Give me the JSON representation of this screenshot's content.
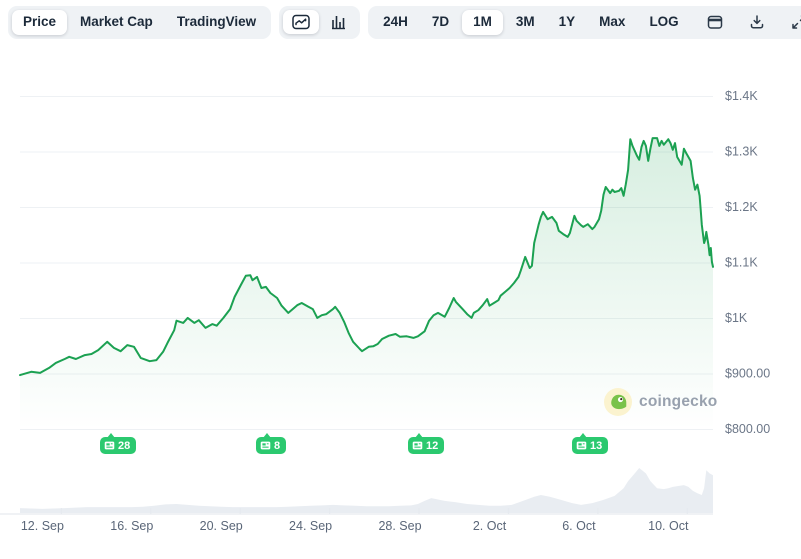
{
  "toolbar": {
    "view_tabs": [
      {
        "label": "Price",
        "active": true
      },
      {
        "label": "Market Cap",
        "active": false
      },
      {
        "label": "TradingView",
        "active": false
      }
    ],
    "chart_type_icons": [
      {
        "icon": "line-chart-icon",
        "active": true
      },
      {
        "icon": "bar-chart-icon",
        "active": false
      }
    ],
    "ranges": [
      {
        "label": "24H",
        "active": false
      },
      {
        "label": "7D",
        "active": false
      },
      {
        "label": "1M",
        "active": true
      },
      {
        "label": "3M",
        "active": false
      },
      {
        "label": "1Y",
        "active": false
      },
      {
        "label": "Max",
        "active": false
      },
      {
        "label": "LOG",
        "active": false
      }
    ],
    "action_icons": [
      "calendar-icon",
      "download-icon",
      "fullscreen-icon"
    ]
  },
  "watermark": {
    "label": "coingecko",
    "icon": "coingecko-gecko-icon"
  },
  "news_badges": [
    {
      "count": "28",
      "day": 3.8
    },
    {
      "count": "8",
      "day": 10.8
    },
    {
      "count": "12",
      "day": 17.6
    },
    {
      "count": "13",
      "day": 24.9
    }
  ],
  "colors": {
    "accent_green": "#1ca152",
    "badge_green": "#2bc96f",
    "area_fill_top": "rgba(28,161,82,0.20)",
    "area_fill_bottom": "rgba(28,161,82,0.0)",
    "navigator_fill": "#e9edf2",
    "gridline": "#eef1f4",
    "axis_line": "#e6eaef",
    "y_label_color": "#6b7687",
    "x_label_color": "#5a6678",
    "toolbar_bg": "#eff2f5",
    "toolbar_text": "#1c2a3a"
  },
  "chart_data": {
    "type": "line",
    "title": "",
    "xlabel": "",
    "ylabel": "",
    "legend": "none",
    "grid": "horizontal",
    "x_axis": {
      "unit": "days",
      "xlim": [
        0,
        31
      ],
      "tick_days": [
        1,
        5,
        9,
        13,
        17,
        21,
        25,
        29
      ],
      "tick_labels": [
        "12. Sep",
        "16. Sep",
        "20. Sep",
        "24. Sep",
        "28. Sep",
        "2. Oct",
        "6. Oct",
        "10. Oct"
      ]
    },
    "y_axis": {
      "ylim": [
        800,
        1400
      ],
      "tick_values": [
        1400,
        1300,
        1200,
        1100,
        1000,
        900,
        800
      ],
      "tick_labels": [
        "$1.4K",
        "$1.3K",
        "$1.2K",
        "$1.1K",
        "$1K",
        "$900.00",
        "$800.00"
      ],
      "position": "right"
    },
    "series": [
      {
        "name": "price_usd",
        "points": [
          [
            0.0,
            898
          ],
          [
            0.5,
            904
          ],
          [
            0.9,
            902
          ],
          [
            1.3,
            911
          ],
          [
            1.6,
            920
          ],
          [
            2.0,
            927
          ],
          [
            2.2,
            931
          ],
          [
            2.5,
            927
          ],
          [
            2.9,
            934
          ],
          [
            3.2,
            936
          ],
          [
            3.5,
            943
          ],
          [
            3.9,
            958
          ],
          [
            4.2,
            947
          ],
          [
            4.5,
            941
          ],
          [
            4.8,
            952
          ],
          [
            5.1,
            949
          ],
          [
            5.4,
            929
          ],
          [
            5.8,
            923
          ],
          [
            6.1,
            925
          ],
          [
            6.4,
            940
          ],
          [
            6.6,
            956
          ],
          [
            6.9,
            979
          ],
          [
            7.0,
            996
          ],
          [
            7.3,
            992
          ],
          [
            7.5,
            1001
          ],
          [
            7.8,
            992
          ],
          [
            8.0,
            997
          ],
          [
            8.3,
            983
          ],
          [
            8.6,
            990
          ],
          [
            8.8,
            987
          ],
          [
            9.1,
            1001
          ],
          [
            9.4,
            1017
          ],
          [
            9.6,
            1039
          ],
          [
            9.9,
            1062
          ],
          [
            10.1,
            1077
          ],
          [
            10.3,
            1078
          ],
          [
            10.4,
            1069
          ],
          [
            10.6,
            1075
          ],
          [
            10.8,
            1055
          ],
          [
            11.0,
            1057
          ],
          [
            11.2,
            1046
          ],
          [
            11.5,
            1037
          ],
          [
            11.7,
            1023
          ],
          [
            12.0,
            1010
          ],
          [
            12.2,
            1017
          ],
          [
            12.4,
            1024
          ],
          [
            12.6,
            1028
          ],
          [
            12.9,
            1021
          ],
          [
            13.1,
            1017
          ],
          [
            13.3,
            1001
          ],
          [
            13.5,
            1006
          ],
          [
            13.7,
            1008
          ],
          [
            14.0,
            1017
          ],
          [
            14.1,
            1021
          ],
          [
            14.3,
            1010
          ],
          [
            14.5,
            994
          ],
          [
            14.7,
            974
          ],
          [
            14.9,
            958
          ],
          [
            15.2,
            945
          ],
          [
            15.3,
            941
          ],
          [
            15.6,
            949
          ],
          [
            15.8,
            950
          ],
          [
            16.0,
            954
          ],
          [
            16.2,
            963
          ],
          [
            16.5,
            969
          ],
          [
            16.8,
            972
          ],
          [
            17.0,
            967
          ],
          [
            17.3,
            968
          ],
          [
            17.6,
            965
          ],
          [
            17.8,
            968
          ],
          [
            18.1,
            977
          ],
          [
            18.3,
            996
          ],
          [
            18.5,
            1006
          ],
          [
            18.7,
            1010
          ],
          [
            19.0,
            1003
          ],
          [
            19.2,
            1019
          ],
          [
            19.4,
            1037
          ],
          [
            19.5,
            1030
          ],
          [
            19.8,
            1017
          ],
          [
            20.0,
            1008
          ],
          [
            20.2,
            1001
          ],
          [
            20.3,
            1010
          ],
          [
            20.5,
            1015
          ],
          [
            20.7,
            1024
          ],
          [
            20.9,
            1035
          ],
          [
            21.0,
            1023
          ],
          [
            21.2,
            1028
          ],
          [
            21.4,
            1033
          ],
          [
            21.5,
            1041
          ],
          [
            21.7,
            1048
          ],
          [
            21.9,
            1055
          ],
          [
            22.1,
            1064
          ],
          [
            22.3,
            1075
          ],
          [
            22.4,
            1086
          ],
          [
            22.6,
            1111
          ],
          [
            22.8,
            1091
          ],
          [
            22.9,
            1095
          ],
          [
            23.0,
            1136
          ],
          [
            23.2,
            1169
          ],
          [
            23.3,
            1183
          ],
          [
            23.4,
            1192
          ],
          [
            23.6,
            1179
          ],
          [
            23.8,
            1183
          ],
          [
            24.0,
            1172
          ],
          [
            24.1,
            1158
          ],
          [
            24.3,
            1152
          ],
          [
            24.5,
            1147
          ],
          [
            24.6,
            1154
          ],
          [
            24.8,
            1185
          ],
          [
            24.9,
            1176
          ],
          [
            25.1,
            1168
          ],
          [
            25.2,
            1165
          ],
          [
            25.4,
            1170
          ],
          [
            25.6,
            1161
          ],
          [
            25.7,
            1165
          ],
          [
            25.9,
            1179
          ],
          [
            26.0,
            1194
          ],
          [
            26.1,
            1223
          ],
          [
            26.2,
            1237
          ],
          [
            26.4,
            1226
          ],
          [
            26.5,
            1232
          ],
          [
            26.6,
            1228
          ],
          [
            26.8,
            1230
          ],
          [
            26.9,
            1235
          ],
          [
            27.0,
            1221
          ],
          [
            27.1,
            1242
          ],
          [
            27.2,
            1268
          ],
          [
            27.3,
            1323
          ],
          [
            27.4,
            1311
          ],
          [
            27.6,
            1293
          ],
          [
            27.7,
            1286
          ],
          [
            27.8,
            1309
          ],
          [
            27.9,
            1320
          ],
          [
            28.0,
            1311
          ],
          [
            28.1,
            1284
          ],
          [
            28.2,
            1306
          ],
          [
            28.3,
            1325
          ],
          [
            28.5,
            1325
          ],
          [
            28.6,
            1311
          ],
          [
            28.7,
            1320
          ],
          [
            28.8,
            1313
          ],
          [
            29.0,
            1323
          ],
          [
            29.1,
            1316
          ],
          [
            29.2,
            1304
          ],
          [
            29.3,
            1316
          ],
          [
            29.4,
            1291
          ],
          [
            29.6,
            1277
          ],
          [
            29.7,
            1306
          ],
          [
            29.8,
            1298
          ],
          [
            30.0,
            1284
          ],
          [
            30.1,
            1253
          ],
          [
            30.2,
            1232
          ],
          [
            30.3,
            1241
          ],
          [
            30.4,
            1221
          ],
          [
            30.45,
            1196
          ],
          [
            30.5,
            1169
          ],
          [
            30.6,
            1136
          ],
          [
            30.65,
            1142
          ],
          [
            30.7,
            1156
          ],
          [
            30.8,
            1132
          ],
          [
            30.85,
            1114
          ],
          [
            30.9,
            1127
          ],
          [
            30.95,
            1102
          ],
          [
            31.0,
            1093
          ]
        ]
      },
      {
        "name": "volume_navigator_relative",
        "style": "area",
        "points": [
          [
            0,
            0.11
          ],
          [
            0.5,
            0.1
          ],
          [
            1,
            0.09
          ],
          [
            1.5,
            0.1
          ],
          [
            2,
            0.11
          ],
          [
            2.5,
            0.12
          ],
          [
            3,
            0.13
          ],
          [
            3.5,
            0.13
          ],
          [
            4,
            0.13
          ],
          [
            4.5,
            0.13
          ],
          [
            5,
            0.13
          ],
          [
            5.5,
            0.14
          ],
          [
            6,
            0.16
          ],
          [
            6.5,
            0.19
          ],
          [
            7,
            0.2
          ],
          [
            7.5,
            0.18
          ],
          [
            8,
            0.16
          ],
          [
            8.5,
            0.15
          ],
          [
            9,
            0.14
          ],
          [
            9.5,
            0.13
          ],
          [
            10,
            0.13
          ],
          [
            10.5,
            0.13
          ],
          [
            11,
            0.13
          ],
          [
            11.5,
            0.13
          ],
          [
            12,
            0.14
          ],
          [
            12.5,
            0.15
          ],
          [
            13,
            0.16
          ],
          [
            13.5,
            0.17
          ],
          [
            14,
            0.18
          ],
          [
            14.5,
            0.17
          ],
          [
            15,
            0.16
          ],
          [
            15.5,
            0.15
          ],
          [
            16,
            0.15
          ],
          [
            16.5,
            0.15
          ],
          [
            17,
            0.16
          ],
          [
            17.5,
            0.17
          ],
          [
            17.8,
            0.2
          ],
          [
            18.1,
            0.27
          ],
          [
            18.4,
            0.33
          ],
          [
            18.7,
            0.3
          ],
          [
            19,
            0.27
          ],
          [
            19.5,
            0.24
          ],
          [
            20,
            0.2
          ],
          [
            20.5,
            0.18
          ],
          [
            21,
            0.16
          ],
          [
            21.5,
            0.16
          ],
          [
            22,
            0.18
          ],
          [
            22.5,
            0.27
          ],
          [
            23,
            0.36
          ],
          [
            23.3,
            0.4
          ],
          [
            23.7,
            0.36
          ],
          [
            24.2,
            0.29
          ],
          [
            24.7,
            0.22
          ],
          [
            25.1,
            0.18
          ],
          [
            25.6,
            0.22
          ],
          [
            26.1,
            0.29
          ],
          [
            26.6,
            0.38
          ],
          [
            27,
            0.55
          ],
          [
            27.2,
            0.71
          ],
          [
            27.45,
            0.85
          ],
          [
            27.7,
            1.0
          ],
          [
            28,
            0.88
          ],
          [
            28.2,
            0.71
          ],
          [
            28.5,
            0.55
          ],
          [
            28.8,
            0.53
          ],
          [
            29,
            0.55
          ],
          [
            29.2,
            0.58
          ],
          [
            29.45,
            0.6
          ],
          [
            29.7,
            0.62
          ],
          [
            29.9,
            0.58
          ],
          [
            30.1,
            0.49
          ],
          [
            30.3,
            0.44
          ],
          [
            30.5,
            0.4
          ],
          [
            30.6,
            0.55
          ],
          [
            30.7,
            0.95
          ],
          [
            30.85,
            0.88
          ],
          [
            31,
            0.84
          ]
        ]
      }
    ]
  }
}
